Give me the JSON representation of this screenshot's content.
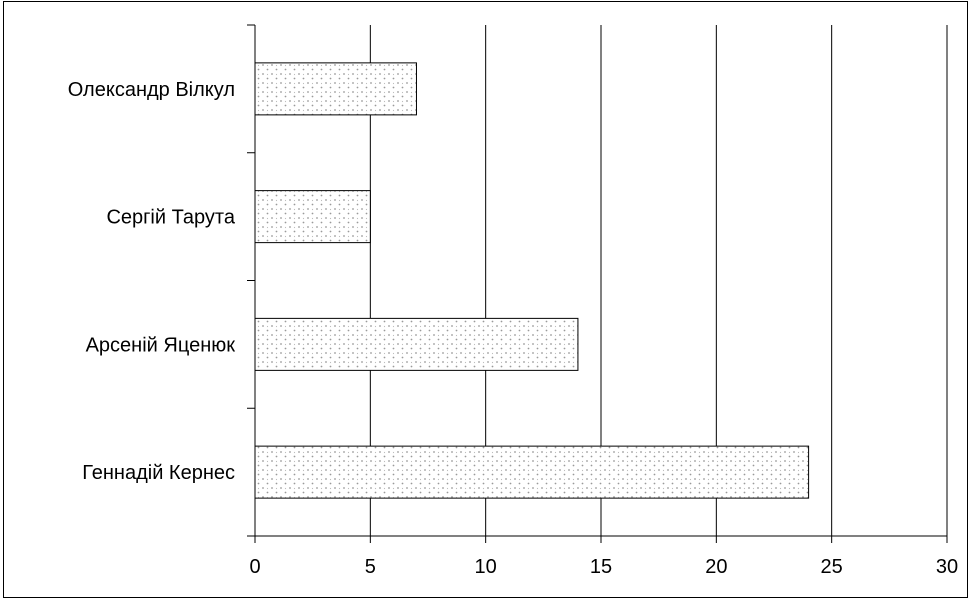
{
  "chart_data": {
    "type": "bar",
    "orientation": "horizontal",
    "categories": [
      "Олександр Вілкул",
      "Сергій Тарута",
      "Арсеній Яценюк",
      "Геннадій Кернес"
    ],
    "values": [
      7,
      5,
      14,
      24
    ],
    "title": "",
    "xlabel": "",
    "ylabel": "",
    "xlim": [
      0,
      30
    ],
    "xticks": [
      "0",
      "5",
      "10",
      "15",
      "20",
      "25",
      "30"
    ],
    "grid": "vertical",
    "legend": "none",
    "bar_fill": "dotted pattern",
    "colors": {
      "bar_edge": "#000000",
      "pattern_dots": "#9a9a9a",
      "grid": "#000000"
    }
  }
}
